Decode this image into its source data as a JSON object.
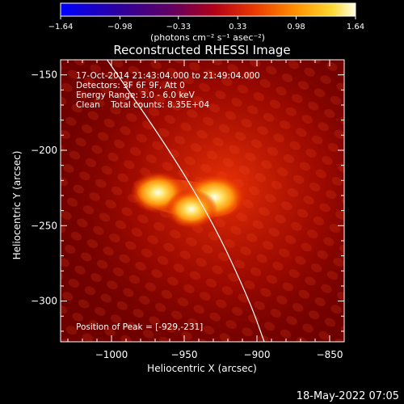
{
  "chart_data": {
    "type": "heatmap",
    "title": "Reconstructed RHESSI Image",
    "xlabel": "Heliocentric X (arcsec)",
    "ylabel": "Heliocentric Y (arcsec)",
    "xlim": [
      -1035,
      -840
    ],
    "ylim": [
      -327,
      -140
    ],
    "x_ticks": [
      -1000,
      -950,
      -900,
      -850
    ],
    "x_tick_labels": [
      "−1000",
      "−950",
      "−900",
      "−850"
    ],
    "y_ticks": [
      -150,
      -200,
      -250,
      -300
    ],
    "y_tick_labels": [
      "−150",
      "−200",
      "−250",
      "−300"
    ],
    "colorbar": {
      "range": [
        -1.64,
        1.64
      ],
      "ticks": [
        -1.64,
        -0.98,
        -0.33,
        0.33,
        0.98,
        1.64
      ],
      "tick_labels": [
        "−1.64",
        "−0.98",
        "−0.33",
        "0.33",
        "0.98",
        "1.64"
      ],
      "label": "(photons cm⁻² s⁻¹ asec⁻²)",
      "colors": [
        "#0000ff",
        "#2a00a0",
        "#5a005a",
        "#a00020",
        "#e02000",
        "#ff8000",
        "#ffd000",
        "#ffffd0"
      ]
    },
    "annotations": [
      "17-Oct-2014 21:43:04.000 to 21:49:04.000",
      "Detectors: 3F 6F 9F, Att 0",
      "Energy Range: 3.0 - 6.0 keV",
      "Clean    Total counts: 8.35E+04"
    ],
    "peak_label": "Position of Peak = [-929,-231]",
    "peak": [
      -929,
      -231
    ],
    "sources": [
      {
        "x": -929,
        "y": -231,
        "value": 1.64
      },
      {
        "x": -968,
        "y": -228,
        "value": 1.3
      },
      {
        "x": -945,
        "y": -239,
        "value": 1.1
      }
    ],
    "limb": [
      [
        -1003,
        -140
      ],
      [
        -960,
        -200
      ],
      [
        -929,
        -250
      ],
      [
        -905,
        -300
      ],
      [
        -895,
        -327
      ]
    ]
  },
  "footer": {
    "date": "18-May-2022 07:05"
  }
}
